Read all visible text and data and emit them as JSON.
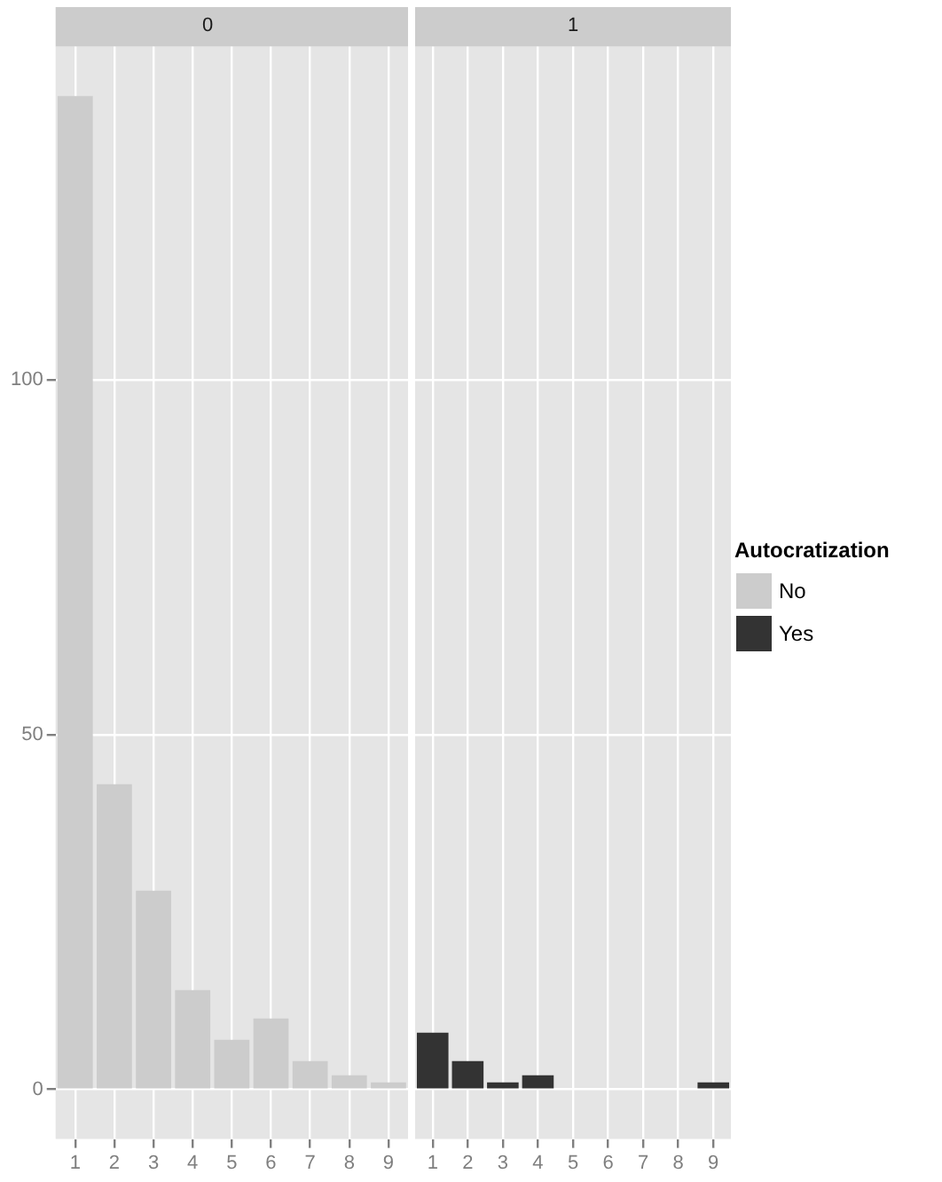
{
  "chart_data": [
    {
      "type": "bar",
      "title": "0",
      "categories": [
        "1",
        "2",
        "3",
        "4",
        "5",
        "6",
        "7",
        "8",
        "9"
      ],
      "stacked": true,
      "ylim": [
        -7,
        147
      ],
      "yticks": [
        0,
        50,
        100
      ],
      "grid": true,
      "legend": false,
      "series": [
        {
          "color": "#cccccc",
          "values": [
            140,
            43,
            28,
            14,
            7,
            10,
            4,
            2,
            1
          ]
        }
      ]
    },
    {
      "type": "bar",
      "title": "1",
      "categories": [
        "1",
        "2",
        "3",
        "4",
        "5",
        "6",
        "7",
        "8",
        "9"
      ],
      "stacked": true,
      "ylim": [
        -7,
        147
      ],
      "yticks": [
        0,
        50,
        100
      ],
      "grid": true,
      "legend": "right",
      "legend_title": "Autocratization",
      "tick_labels": "x",
      "series": [
        {
          "name": "No",
          "color": "#cccccc",
          "values": [
            null,
            null,
            null,
            null,
            null,
            null,
            null,
            null,
            null
          ]
        },
        {
          "name": "Yes",
          "color": "#333333",
          "values": [
            8,
            4,
            1,
            2,
            null,
            null,
            null,
            null,
            1
          ]
        }
      ]
    }
  ]
}
